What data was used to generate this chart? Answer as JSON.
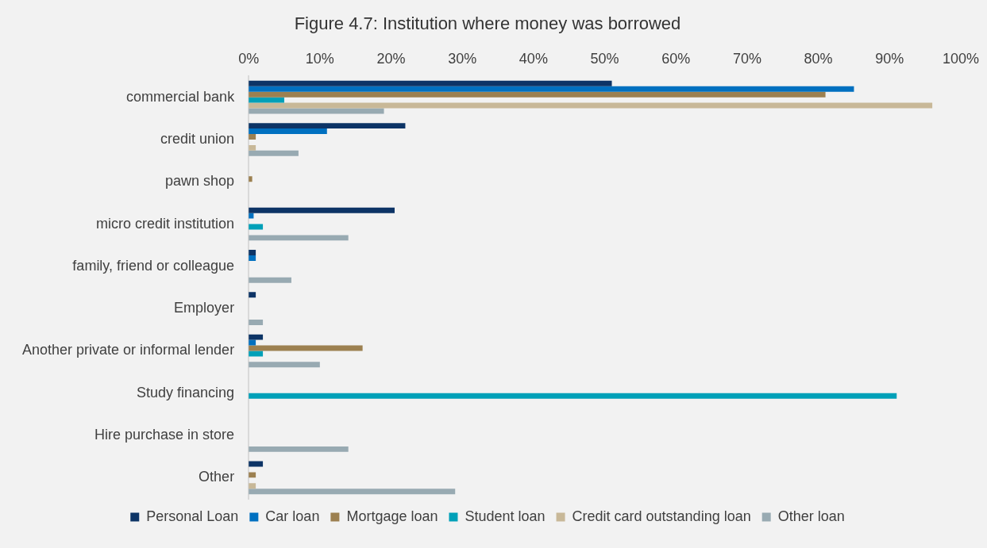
{
  "chart_data": {
    "type": "bar",
    "orientation": "horizontal",
    "title": "Figure 4.7: Institution where money was borrowed",
    "categories": [
      "commercial bank",
      "credit union",
      "pawn shop",
      "micro credit institution",
      "family, friend or colleague",
      "Employer",
      "Another private or informal lender",
      "Study financing",
      "Hire purchase in store",
      "Other"
    ],
    "series": [
      {
        "name": "Personal Loan",
        "color": "#0d3466",
        "values": [
          51,
          22,
          0,
          20.5,
          1,
          1,
          2,
          0,
          0,
          2
        ]
      },
      {
        "name": "Car loan",
        "color": "#0070c0",
        "values": [
          85,
          11,
          0,
          0.7,
          1,
          0,
          1,
          0,
          0,
          0
        ]
      },
      {
        "name": "Mortgage loan",
        "color": "#9c8050",
        "values": [
          81,
          1,
          0.5,
          0,
          0,
          0,
          16,
          0,
          0,
          1
        ]
      },
      {
        "name": "Student loan",
        "color": "#00a0b8",
        "values": [
          5,
          0,
          0,
          2,
          0,
          0,
          2,
          91,
          0,
          0
        ]
      },
      {
        "name": "Credit card outstanding loan",
        "color": "#c8b898",
        "values": [
          96,
          1,
          0,
          0,
          0,
          0,
          0,
          0,
          0,
          1
        ]
      },
      {
        "name": "Other loan",
        "color": "#98aab2",
        "values": [
          19,
          7,
          0,
          14,
          6,
          2,
          10,
          0,
          14,
          29
        ]
      }
    ],
    "xlim": [
      0,
      100
    ],
    "xticks": [
      {
        "value": 0,
        "label": "0%"
      },
      {
        "value": 10,
        "label": "10%"
      },
      {
        "value": 20,
        "label": "20%"
      },
      {
        "value": 30,
        "label": "30%"
      },
      {
        "value": 40,
        "label": "40%"
      },
      {
        "value": 50,
        "label": "50%"
      },
      {
        "value": 60,
        "label": "60%"
      },
      {
        "value": 70,
        "label": "70%"
      },
      {
        "value": 80,
        "label": "80%"
      },
      {
        "value": 90,
        "label": "90%"
      },
      {
        "value": 100,
        "label": "100%"
      }
    ],
    "grid": false,
    "legend": "bottom"
  }
}
